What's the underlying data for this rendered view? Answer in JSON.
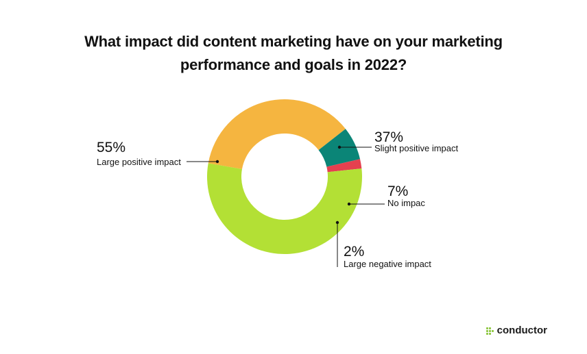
{
  "chart_data": {
    "type": "pie",
    "style": "donut",
    "title_lines": [
      "What impact did content marketing have on your marketing",
      "performance and goals in 2022?"
    ],
    "slices": [
      {
        "label": "Slight positive impact",
        "value": 37,
        "value_label": "37%",
        "color": "#f5b540"
      },
      {
        "label": "No impac",
        "value": 7,
        "value_label": "7%",
        "color": "#0b8577"
      },
      {
        "label": "Large negative impact",
        "value": 2,
        "value_label": "2%",
        "color": "#e5404f"
      },
      {
        "label": "Large positive impact",
        "value": 55,
        "value_label": "55%",
        "color": "#b3e035"
      }
    ]
  },
  "brand": {
    "name": "conductor",
    "color": "#8cc63f"
  }
}
